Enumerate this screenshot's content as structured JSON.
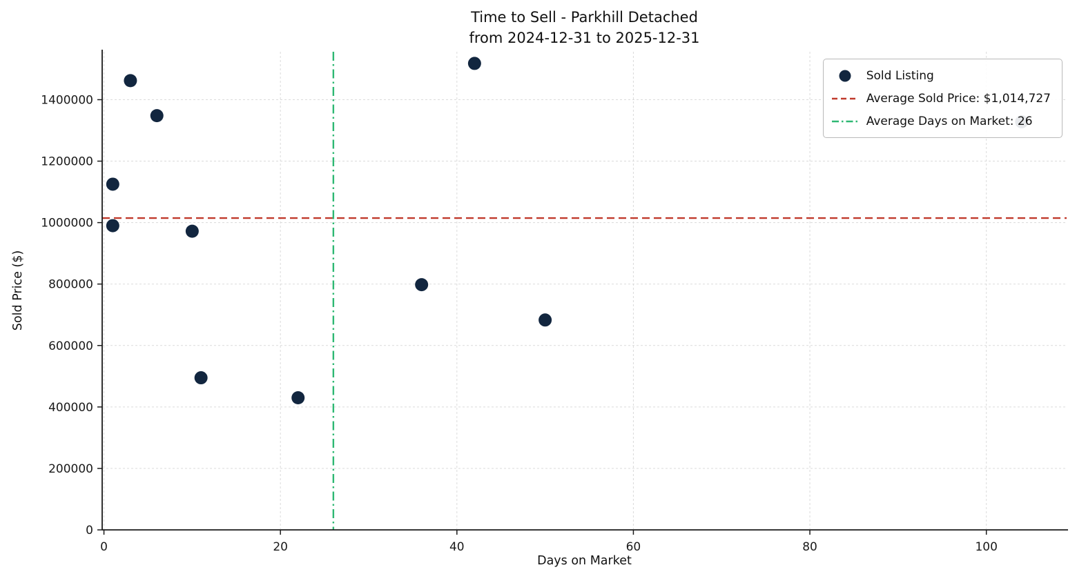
{
  "title": {
    "line1": "Time to Sell - Parkhill Detached",
    "line2": "from 2024-12-31 to 2025-12-31"
  },
  "axes": {
    "xlabel": "Days on Market",
    "ylabel": "Sold Price ($)"
  },
  "legend": {
    "items": [
      {
        "label": "Sold Listing",
        "type": "marker"
      },
      {
        "label": "Average Sold Price: $1,014,727",
        "type": "dashed-line"
      },
      {
        "label": "Average Days on Market: 26",
        "type": "dashdot-line"
      }
    ]
  },
  "colors": {
    "marker": "#12263f",
    "avg_price_line": "#c0392b",
    "avg_days_line": "#2eb873",
    "grid": "#dadada",
    "spine": "#1a1a1a"
  },
  "chart_data": {
    "type": "scatter",
    "title": "Time to Sell - Parkhill Detached from 2024-12-31 to 2025-12-31",
    "xlabel": "Days on Market",
    "ylabel": "Sold Price ($)",
    "legend_position": "upper right",
    "grid": true,
    "series": [
      {
        "name": "Sold Listing",
        "points": [
          [
            1,
            1125000
          ],
          [
            1,
            990000
          ],
          [
            3,
            1462000
          ],
          [
            6,
            1348000
          ],
          [
            10,
            972000
          ],
          [
            11,
            495000
          ],
          [
            22,
            430000
          ],
          [
            36,
            798000
          ],
          [
            42,
            1518000
          ],
          [
            50,
            683000
          ],
          [
            104,
            1328000
          ]
        ]
      }
    ],
    "average_sold_price": 1014727,
    "average_days_on_market": 26,
    "xlim": [
      -0.2,
      109.1
    ],
    "ylim": [
      0,
      1556000
    ],
    "xticks": [
      0,
      20,
      40,
      60,
      80,
      100
    ],
    "yticks": [
      0,
      200000,
      400000,
      600000,
      800000,
      1000000,
      1200000,
      1400000
    ]
  }
}
